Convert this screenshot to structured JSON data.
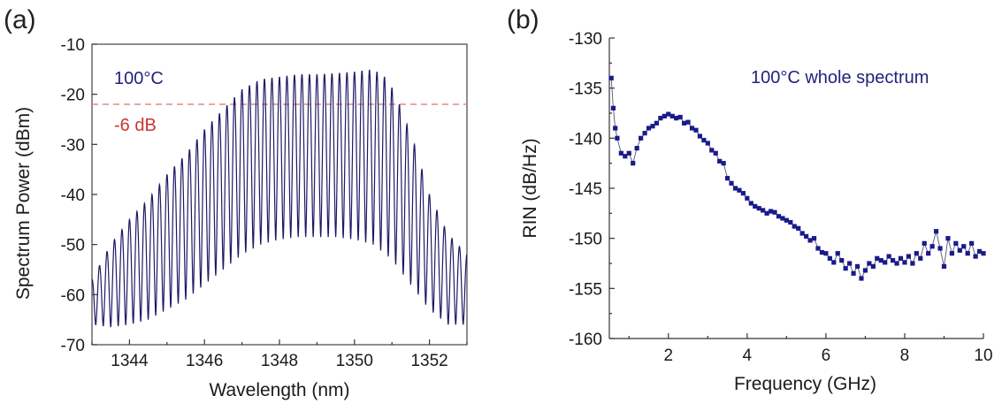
{
  "chart_data": [
    {
      "panel": "(a)",
      "type": "line",
      "xlabel": "Wavelength (nm)",
      "ylabel": "Spectrum Power (dBm)",
      "xlim": [
        1343,
        1353
      ],
      "ylim": [
        -70,
        -10
      ],
      "xticks": [
        "1344",
        "1346",
        "1348",
        "1350",
        "1352"
      ],
      "yticks": [
        "-10",
        "-20",
        "-30",
        "-40",
        "-50",
        "-60",
        "-70"
      ],
      "annotations": [
        {
          "text": "100°C",
          "color": "#22227a"
        },
        {
          "text": "-6 dB",
          "color": "#cc3333"
        }
      ],
      "reference_line": {
        "y": -22,
        "style": "dashed",
        "color": "#e08a8a"
      },
      "series_color": "#1a1a66",
      "mode_spacing_nm": 0.2,
      "upper_envelope": {
        "x": [
          1343,
          1343.5,
          1344,
          1344.5,
          1345,
          1345.5,
          1346,
          1346.5,
          1347,
          1347.5,
          1348,
          1348.5,
          1349,
          1349.5,
          1350,
          1350.5,
          1350.9,
          1351.2,
          1351.6,
          1352,
          1352.5,
          1353
        ],
        "y": [
          -57,
          -50,
          -45,
          -41,
          -36,
          -32,
          -27,
          -23,
          -19,
          -17,
          -16.5,
          -16,
          -16,
          -15.8,
          -15.5,
          -15,
          -17,
          -22,
          -30,
          -40,
          -48,
          -52
        ]
      },
      "lower_envelope": {
        "x": [
          1343,
          1343.5,
          1344,
          1344.5,
          1345,
          1345.5,
          1346,
          1346.5,
          1347,
          1347.5,
          1348,
          1348.5,
          1349,
          1349.5,
          1350,
          1350.5,
          1351,
          1351.5,
          1352,
          1352.5,
          1353
        ],
        "y": [
          -66,
          -66.5,
          -66,
          -65,
          -63,
          -61,
          -58,
          -55,
          -52,
          -50,
          -49,
          -48.5,
          -48.5,
          -48.5,
          -49,
          -50,
          -53,
          -58,
          -63,
          -66,
          -66
        ]
      }
    },
    {
      "panel": "(b)",
      "type": "scatter",
      "xlabel": "Frequency (GHz)",
      "ylabel": "RIN (dB/Hz)",
      "xlim": [
        0.5,
        10
      ],
      "ylim": [
        -160,
        -130
      ],
      "xticks": [
        "2",
        "4",
        "6",
        "8",
        "10"
      ],
      "yticks": [
        "-130",
        "-135",
        "-140",
        "-145",
        "-150",
        "-155",
        "-160"
      ],
      "annotations": [
        {
          "text": "100°C whole spectrum",
          "color": "#22227a"
        }
      ],
      "series_color": "#1a1a8a",
      "series": [
        {
          "x": [
            0.55,
            0.6,
            0.65,
            0.7,
            0.8,
            0.9,
            1.0,
            1.1,
            1.2,
            1.3,
            1.4,
            1.5,
            1.6,
            1.7,
            1.8,
            1.9,
            2.0,
            2.1,
            2.2,
            2.3,
            2.4,
            2.5,
            2.6,
            2.7,
            2.8,
            2.9,
            3.0,
            3.1,
            3.2,
            3.3,
            3.4,
            3.5,
            3.6,
            3.7,
            3.8,
            3.9,
            4.0,
            4.1,
            4.2,
            4.3,
            4.4,
            4.5,
            4.6,
            4.7,
            4.8,
            4.9,
            5.0,
            5.1,
            5.2,
            5.3,
            5.4,
            5.5,
            5.6,
            5.7,
            5.8,
            5.9,
            6.0,
            6.1,
            6.2,
            6.3,
            6.4,
            6.5,
            6.6,
            6.7,
            6.8,
            6.9,
            7.0,
            7.1,
            7.2,
            7.3,
            7.4,
            7.5,
            7.6,
            7.7,
            7.8,
            7.9,
            8.0,
            8.1,
            8.2,
            8.3,
            8.4,
            8.5,
            8.6,
            8.7,
            8.8,
            8.9,
            9.0,
            9.1,
            9.2,
            9.3,
            9.4,
            9.5,
            9.6,
            9.7,
            9.8,
            9.9,
            10.0
          ],
          "y": [
            -134,
            -137,
            -139,
            -140,
            -141.5,
            -141.8,
            -141.5,
            -142.5,
            -141,
            -140,
            -139.5,
            -139,
            -138.8,
            -138.5,
            -138,
            -137.8,
            -137.6,
            -137.8,
            -138,
            -137.9,
            -138.5,
            -138.4,
            -139,
            -139.2,
            -139.8,
            -140.2,
            -140.5,
            -141.2,
            -141.5,
            -142.3,
            -142.5,
            -144,
            -144.5,
            -145,
            -145.2,
            -145.5,
            -146,
            -146.5,
            -146.8,
            -147,
            -147.2,
            -147.5,
            -147.3,
            -147.4,
            -147.8,
            -148,
            -148.2,
            -148.4,
            -148.8,
            -149,
            -149.5,
            -149.8,
            -150.2,
            -150,
            -151,
            -151.4,
            -151.5,
            -152,
            -152.4,
            -151.5,
            -152.2,
            -153,
            -152.5,
            -153.5,
            -152.8,
            -154,
            -153.2,
            -152.5,
            -152.8,
            -152,
            -152.2,
            -152.4,
            -151.8,
            -152.2,
            -152.5,
            -152,
            -152.4,
            -151.8,
            -152.5,
            -151.5,
            -152,
            -150.5,
            -151.5,
            -150.8,
            -149.3,
            -151,
            -152.8,
            -150,
            -151.5,
            -150.5,
            -151.2,
            -150.8,
            -151.5,
            -150.5,
            -151.8,
            -151.3,
            -151.5
          ]
        }
      ]
    }
  ]
}
